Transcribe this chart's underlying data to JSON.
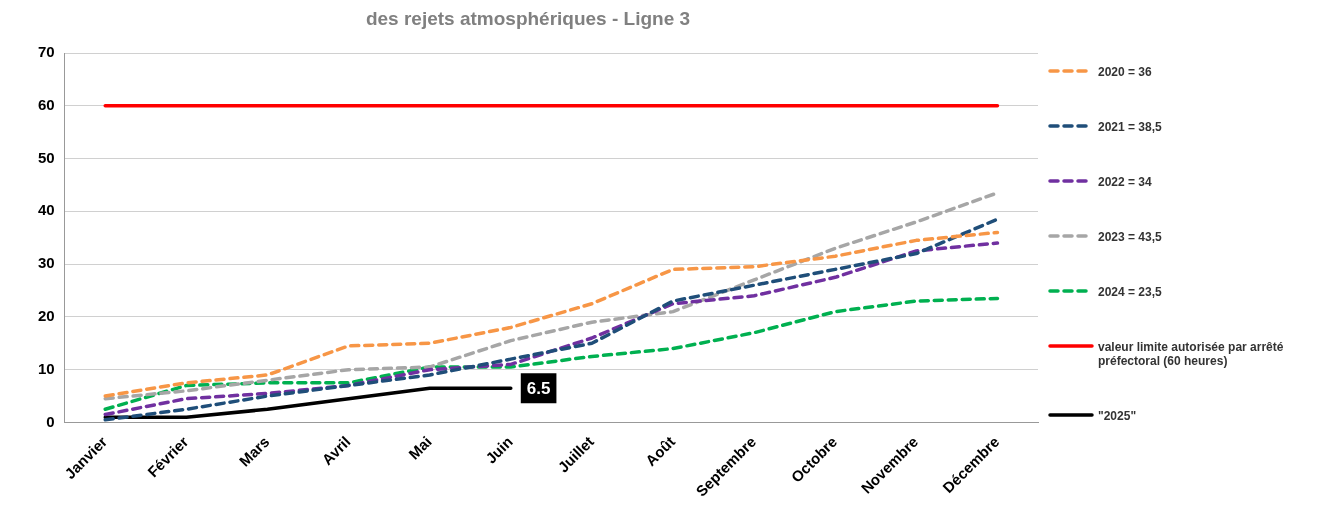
{
  "chart_data": {
    "type": "line",
    "title": "des rejets atmosphériques - Ligne 3",
    "categories": [
      "Janvier",
      "Février",
      "Mars",
      "Avril",
      "Mai",
      "Juin",
      "Juillet",
      "Août",
      "Septembre",
      "Octobre",
      "Novembre",
      "Décembre"
    ],
    "series": [
      {
        "name": "2020 = 36",
        "color": "#f79646",
        "line_style": "dashed",
        "values": [
          5,
          7.5,
          9,
          14.5,
          15,
          18,
          22.5,
          29,
          29.5,
          31.5,
          34.5,
          36
        ]
      },
      {
        "name": "2021 = 38,5",
        "color": "#1f4e79",
        "line_style": "dashed",
        "values": [
          0.5,
          2.5,
          5,
          7,
          9,
          12,
          15,
          23,
          26,
          29,
          32,
          38.5
        ]
      },
      {
        "name": "2022 = 34",
        "color": "#7030a0",
        "line_style": "dashed",
        "values": [
          1.5,
          4.5,
          5.5,
          7,
          10,
          11,
          16,
          22.5,
          24,
          27.5,
          32.5,
          34
        ]
      },
      {
        "name": "2023 = 43,5",
        "color": "#a6a6a6",
        "line_style": "dashed",
        "values": [
          4.5,
          6,
          8,
          10,
          10.5,
          15.5,
          19,
          21,
          27,
          33,
          38,
          43.5
        ]
      },
      {
        "name": "2024 = 23,5",
        "color": "#00b050",
        "line_style": "dashed",
        "values": [
          2.5,
          7,
          7.5,
          7.5,
          10.5,
          10.5,
          12.5,
          14,
          17,
          21,
          23,
          23.5
        ]
      },
      {
        "name": "valeur limite autorisée par arrêté préfectoral (60 heures)",
        "color": "#ff0000",
        "line_style": "solid",
        "values": [
          60,
          60,
          60,
          60,
          60,
          60,
          60,
          60,
          60,
          60,
          60,
          60
        ]
      },
      {
        "name": "\"2025\"",
        "color": "#000000",
        "line_style": "solid",
        "values": [
          1,
          1,
          2.5,
          4.5,
          6.5,
          6.5,
          null,
          null,
          null,
          null,
          null,
          null
        ],
        "value_labels": [
          null,
          null,
          null,
          null,
          null,
          "6.5",
          null,
          null,
          null,
          null,
          null,
          null
        ]
      }
    ],
    "ylim": [
      0,
      70
    ],
    "yticks": [
      0,
      10,
      20,
      30,
      40,
      50,
      60,
      70
    ],
    "grid": "y",
    "legend": "right",
    "marker": "none"
  }
}
